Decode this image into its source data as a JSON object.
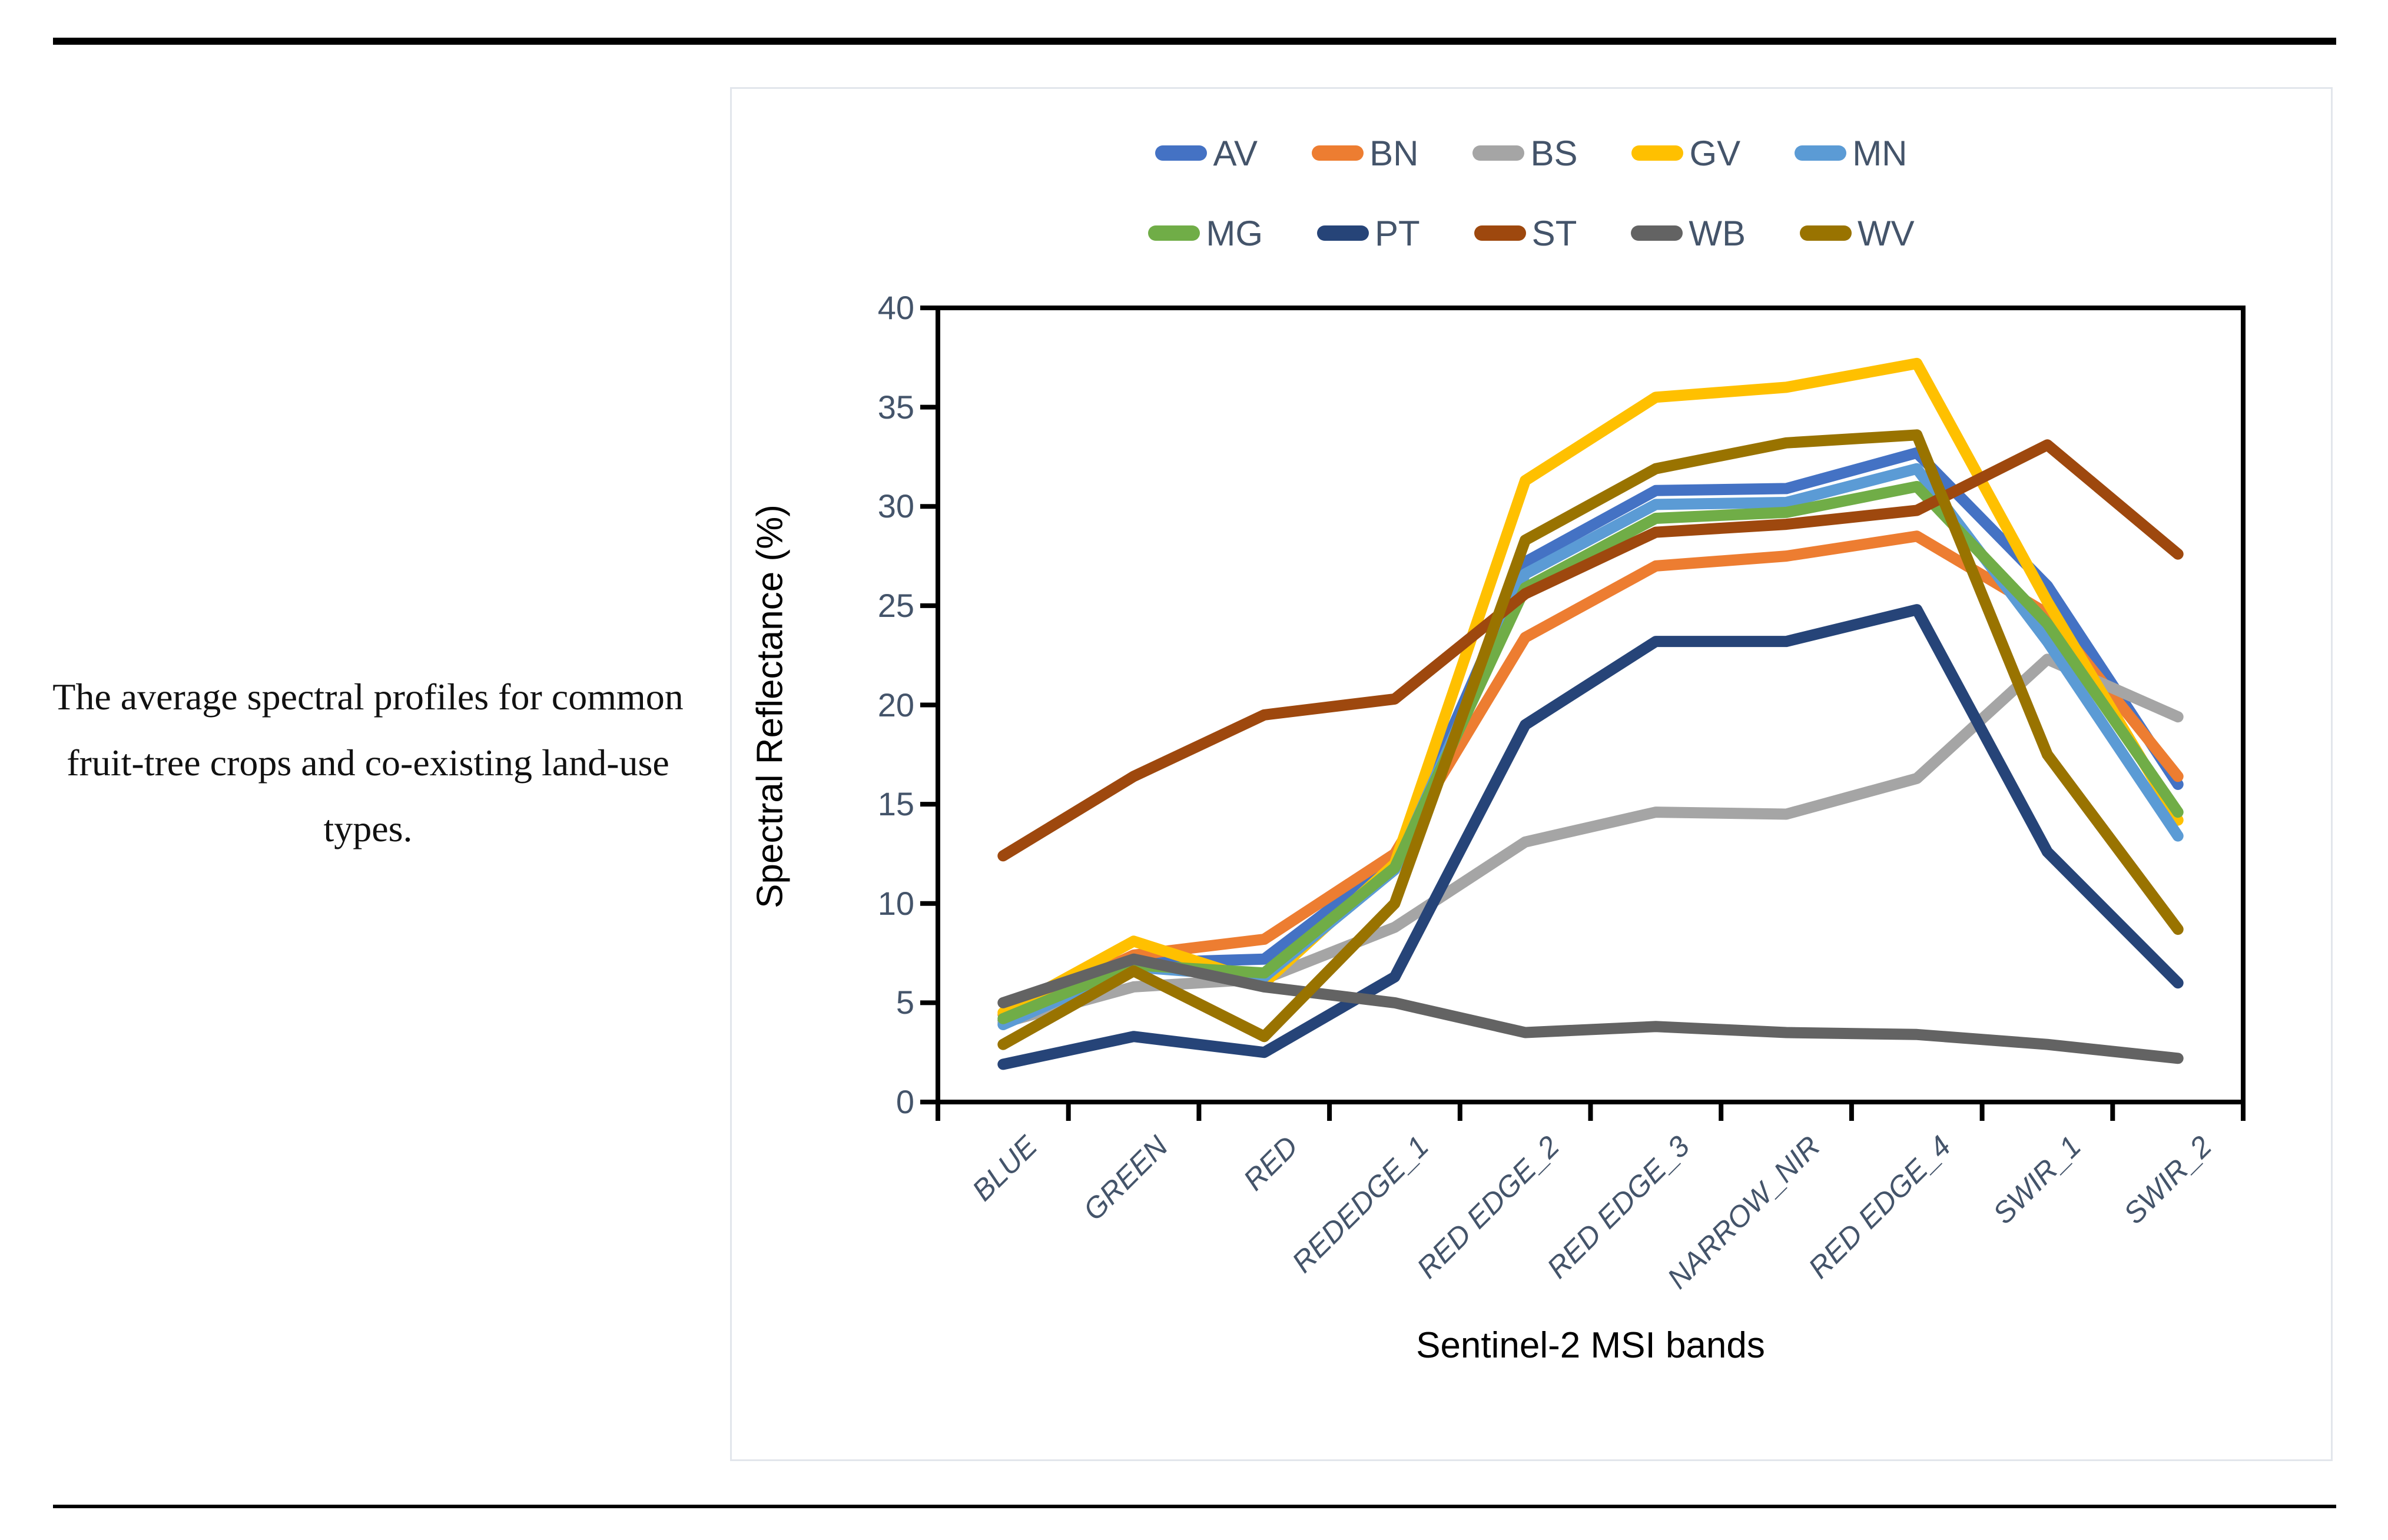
{
  "page": {
    "caption": "The average spectral profiles for common fruit-tree crops and co-existing land-use types."
  },
  "chart_data": {
    "type": "line",
    "title": "",
    "xlabel": "Sentinel-2 MSI bands",
    "ylabel": "Spectral Reflectance (%)",
    "ylim": [
      0,
      40
    ],
    "yticks": [
      0,
      5,
      10,
      15,
      20,
      25,
      30,
      35,
      40
    ],
    "grid": false,
    "legend_position": "top",
    "legend_rows": [
      [
        "AV",
        "BN",
        "BS",
        "GV",
        "MN"
      ],
      [
        "MG",
        "PT",
        "ST",
        "WB",
        "WV"
      ]
    ],
    "tick_label_color": "#44546A",
    "axis_color": "#000000",
    "categories": [
      "BLUE",
      "GREEN",
      "RED",
      "REDEDGE_1",
      "RED EDGE_2",
      "RED EDGE_3",
      "NARROW_NIR",
      "RED EDGE_4",
      "SWIR_1",
      "SWIR_2"
    ],
    "series": [
      {
        "name": "AV",
        "color": "#4472C4",
        "values": [
          4.1,
          7.0,
          7.2,
          12.2,
          27.2,
          30.8,
          30.9,
          32.7,
          26.0,
          16.0
        ]
      },
      {
        "name": "BN",
        "color": "#ED7D31",
        "values": [
          4.4,
          7.4,
          8.2,
          12.5,
          23.4,
          27.0,
          27.5,
          28.5,
          24.6,
          16.4
        ]
      },
      {
        "name": "BS",
        "color": "#A5A5A5",
        "values": [
          4.0,
          5.8,
          6.2,
          8.8,
          13.1,
          14.6,
          14.5,
          16.3,
          22.3,
          19.4
        ]
      },
      {
        "name": "GV",
        "color": "#FFC000",
        "values": [
          4.5,
          8.1,
          6.0,
          12.0,
          31.3,
          35.5,
          36.0,
          37.2,
          25.2,
          14.2
        ]
      },
      {
        "name": "MN",
        "color": "#5B9BD5",
        "values": [
          3.9,
          6.8,
          6.3,
          11.7,
          26.6,
          30.1,
          30.2,
          31.9,
          23.2,
          13.4
        ]
      },
      {
        "name": "MG",
        "color": "#70AD47",
        "values": [
          4.2,
          6.9,
          6.5,
          11.8,
          25.9,
          29.4,
          29.7,
          31.0,
          24.1,
          14.6
        ]
      },
      {
        "name": "PT",
        "color": "#264478",
        "values": [
          1.9,
          3.3,
          2.5,
          6.3,
          19.0,
          23.2,
          23.2,
          24.8,
          12.6,
          6.0
        ]
      },
      {
        "name": "ST",
        "color": "#9E480E",
        "values": [
          12.4,
          16.4,
          19.5,
          20.3,
          25.6,
          28.7,
          29.1,
          29.8,
          33.1,
          27.6
        ]
      },
      {
        "name": "WB",
        "color": "#636363",
        "values": [
          5.0,
          7.2,
          5.8,
          5.0,
          3.5,
          3.8,
          3.5,
          3.4,
          2.9,
          2.2
        ]
      },
      {
        "name": "WV",
        "color": "#997300",
        "values": [
          2.9,
          6.6,
          3.3,
          10.0,
          28.3,
          31.9,
          33.2,
          33.6,
          17.5,
          8.7
        ]
      }
    ]
  }
}
